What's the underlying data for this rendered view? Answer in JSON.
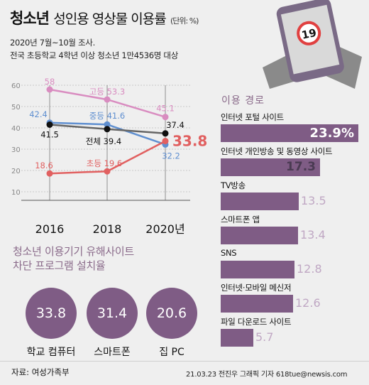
{
  "header": {
    "title_bold": "청소년",
    "title_rest": "성인용 영상물 이용률",
    "unit": "(단위: %)",
    "sub1": "2020년 7월~10월 조사.",
    "sub2": "전국 초등학교 4학년 이상 청소년 1만4536명 대상",
    "badge": "19"
  },
  "chart_data": [
    {
      "type": "line",
      "x": [
        "2016",
        "2018",
        "2020년"
      ],
      "ylim": [
        10,
        60
      ],
      "yticks": [
        "60",
        "50",
        "40",
        "30",
        "20",
        "10"
      ],
      "series": [
        {
          "name": "고등",
          "values": [
            58,
            53.3,
            45.1
          ],
          "labels": [
            "58",
            "고등 53.3",
            "45.1"
          ],
          "color": "#d98cc0"
        },
        {
          "name": "중등",
          "values": [
            42.4,
            41.6,
            32.2
          ],
          "labels": [
            "42.4",
            "중등 41.6",
            "32.2"
          ],
          "color": "#5f8fd0"
        },
        {
          "name": "전체",
          "values": [
            41.5,
            39.4,
            37.4
          ],
          "labels": [
            "41.5",
            "전체 39.4",
            "37.4"
          ],
          "color": "#666666"
        },
        {
          "name": "초등",
          "values": [
            18.6,
            19.6,
            33.8
          ],
          "labels": [
            "18.6",
            "초등 19.6",
            "33.8"
          ],
          "color": "#e16060"
        }
      ]
    },
    {
      "type": "bar",
      "title": "이용 경로",
      "categories": [
        "인터넷 포털 사이트",
        "인터넷 개인방송 및 동영상 사이트",
        "TV방송",
        "스마트폰 앱",
        "SNS",
        "인터넷·모바일 메신저",
        "파일 다운로드 사이트"
      ],
      "values": [
        23.9,
        17.3,
        13.5,
        13.4,
        12.8,
        12.6,
        5.7
      ],
      "value_labels": [
        "23.9%",
        "17.3",
        "13.5",
        "13.4",
        "12.8",
        "12.6",
        "5.7"
      ],
      "color": "#7f5c85"
    },
    {
      "type": "table",
      "title_line1": "청소년 이용기기 유해사이트",
      "title_line2": "차단 프로그램 설치율",
      "items": [
        {
          "value": "33.8",
          "label": "학교 컴퓨터"
        },
        {
          "value": "31.4",
          "label": "스마트폰"
        },
        {
          "value": "20.6",
          "label": "집 PC"
        }
      ]
    }
  ],
  "footer": {
    "source": "자료: 여성가족부",
    "credit": "21.03.23 전진우 그래픽 기자 618tue@newsis.com"
  }
}
